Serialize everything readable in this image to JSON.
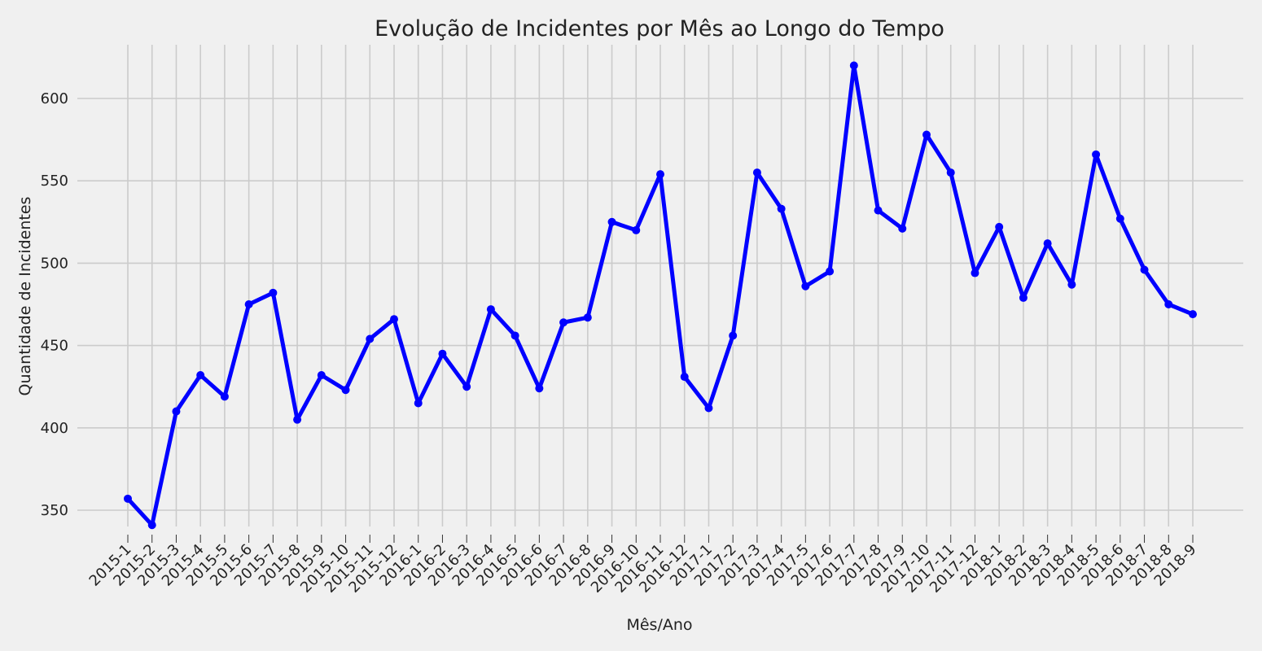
{
  "chart_data": {
    "type": "line",
    "title": "Evolução de Incidentes por Mês ao Longo do Tempo",
    "xlabel": "Mês/Ano",
    "ylabel": "Quantidade de Incidentes",
    "categories": [
      "2015-1",
      "2015-2",
      "2015-3",
      "2015-4",
      "2015-5",
      "2015-6",
      "2015-7",
      "2015-8",
      "2015-9",
      "2015-10",
      "2015-11",
      "2015-12",
      "2016-1",
      "2016-2",
      "2016-3",
      "2016-4",
      "2016-5",
      "2016-6",
      "2016-7",
      "2016-8",
      "2016-9",
      "2016-10",
      "2016-11",
      "2016-12",
      "2017-1",
      "2017-2",
      "2017-3",
      "2017-4",
      "2017-5",
      "2017-6",
      "2017-7",
      "2017-8",
      "2017-9",
      "2017-10",
      "2017-11",
      "2017-12",
      "2018-1",
      "2018-2",
      "2018-3",
      "2018-4",
      "2018-5",
      "2018-6",
      "2018-7",
      "2018-8",
      "2018-9"
    ],
    "series": [
      {
        "values": [
          357,
          341,
          410,
          432,
          419,
          475,
          482,
          405,
          432,
          423,
          454,
          466,
          415,
          445,
          425,
          472,
          456,
          424,
          464,
          467,
          525,
          520,
          554,
          431,
          412,
          456,
          555,
          533,
          486,
          495,
          620,
          532,
          521,
          578,
          555,
          494,
          522,
          479,
          512,
          487,
          566,
          527,
          496,
          475,
          469
        ]
      }
    ],
    "y_ticks": [
      350,
      400,
      450,
      500,
      550,
      600
    ],
    "ylim": [
      329,
      632
    ],
    "grid": true,
    "line_color": "#0000ff",
    "marker": "circle",
    "background_color": "#f0f0f0",
    "grid_color": "#cbcbcb"
  }
}
